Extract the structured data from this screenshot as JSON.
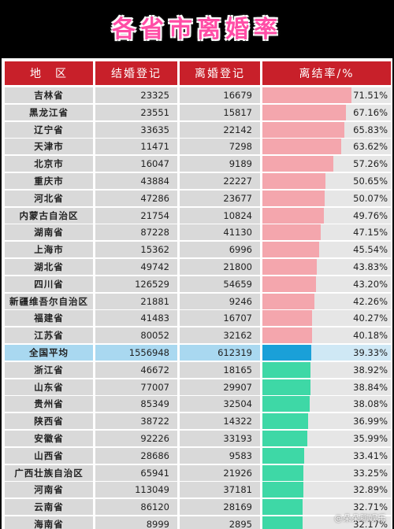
{
  "title": "各省市离婚率",
  "watermark": "@朵朵聊娱乐",
  "colors": {
    "above": "#f4a6ad",
    "avg": "#1aa0d8",
    "below": "#3ed8a6",
    "header": "#c8202a"
  },
  "chart_data": {
    "type": "table",
    "columns": [
      "地　区",
      "结婚登记",
      "离婚登记",
      "离结率/%"
    ],
    "rate_scale_max": 75,
    "rows": [
      {
        "region": "吉林省",
        "marriage": "23325",
        "divorce": "16679",
        "rate": 71.51,
        "rate_label": "71.51%",
        "group": "above"
      },
      {
        "region": "黑龙江省",
        "marriage": "23551",
        "divorce": "15817",
        "rate": 67.16,
        "rate_label": "67.16%",
        "group": "above"
      },
      {
        "region": "辽宁省",
        "marriage": "33635",
        "divorce": "22142",
        "rate": 65.83,
        "rate_label": "65.83%",
        "group": "above"
      },
      {
        "region": "天津市",
        "marriage": "11471",
        "divorce": "7298",
        "rate": 63.62,
        "rate_label": "63.62%",
        "group": "above"
      },
      {
        "region": "北京市",
        "marriage": "16047",
        "divorce": "9189",
        "rate": 57.26,
        "rate_label": "57.26%",
        "group": "above"
      },
      {
        "region": "重庆市",
        "marriage": "43884",
        "divorce": "22227",
        "rate": 50.65,
        "rate_label": "50.65%",
        "group": "above"
      },
      {
        "region": "河北省",
        "marriage": "47286",
        "divorce": "23677",
        "rate": 50.07,
        "rate_label": "50.07%",
        "group": "above"
      },
      {
        "region": "内蒙古自治区",
        "marriage": "21754",
        "divorce": "10824",
        "rate": 49.76,
        "rate_label": "49.76%",
        "group": "above"
      },
      {
        "region": "湖南省",
        "marriage": "87228",
        "divorce": "41130",
        "rate": 47.15,
        "rate_label": "47.15%",
        "group": "above"
      },
      {
        "region": "上海市",
        "marriage": "15362",
        "divorce": "6996",
        "rate": 45.54,
        "rate_label": "45.54%",
        "group": "above"
      },
      {
        "region": "湖北省",
        "marriage": "49742",
        "divorce": "21800",
        "rate": 43.83,
        "rate_label": "43.83%",
        "group": "above"
      },
      {
        "region": "四川省",
        "marriage": "126529",
        "divorce": "54659",
        "rate": 43.2,
        "rate_label": "43.20%",
        "group": "above"
      },
      {
        "region": "新疆维吾尔自治区",
        "marriage": "21881",
        "divorce": "9246",
        "rate": 42.26,
        "rate_label": "42.26%",
        "group": "above"
      },
      {
        "region": "福建省",
        "marriage": "41483",
        "divorce": "16707",
        "rate": 40.27,
        "rate_label": "40.27%",
        "group": "above"
      },
      {
        "region": "江苏省",
        "marriage": "80052",
        "divorce": "32162",
        "rate": 40.18,
        "rate_label": "40.18%",
        "group": "above"
      },
      {
        "region": "全国平均",
        "marriage": "1556948",
        "divorce": "612319",
        "rate": 39.33,
        "rate_label": "39.33%",
        "group": "avg"
      },
      {
        "region": "浙江省",
        "marriage": "46672",
        "divorce": "18165",
        "rate": 38.92,
        "rate_label": "38.92%",
        "group": "below"
      },
      {
        "region": "山东省",
        "marriage": "77007",
        "divorce": "29907",
        "rate": 38.84,
        "rate_label": "38.84%",
        "group": "below"
      },
      {
        "region": "贵州省",
        "marriage": "85349",
        "divorce": "32504",
        "rate": 38.08,
        "rate_label": "38.08%",
        "group": "below"
      },
      {
        "region": "陕西省",
        "marriage": "38722",
        "divorce": "14322",
        "rate": 36.99,
        "rate_label": "36.99%",
        "group": "below"
      },
      {
        "region": "安徽省",
        "marriage": "92226",
        "divorce": "33193",
        "rate": 35.99,
        "rate_label": "35.99%",
        "group": "below"
      },
      {
        "region": "山西省",
        "marriage": "28686",
        "divorce": "9583",
        "rate": 33.41,
        "rate_label": "33.41%",
        "group": "below"
      },
      {
        "region": "广西壮族自治区",
        "marriage": "65941",
        "divorce": "21926",
        "rate": 33.25,
        "rate_label": "33.25%",
        "group": "below"
      },
      {
        "region": "河南省",
        "marriage": "113049",
        "divorce": "37181",
        "rate": 32.89,
        "rate_label": "32.89%",
        "group": "below"
      },
      {
        "region": "云南省",
        "marriage": "86120",
        "divorce": "28169",
        "rate": 32.71,
        "rate_label": "32.71%",
        "group": "below"
      },
      {
        "region": "海南省",
        "marriage": "8999",
        "divorce": "2895",
        "rate": 32.17,
        "rate_label": "32.17%",
        "group": "below"
      }
    ]
  }
}
